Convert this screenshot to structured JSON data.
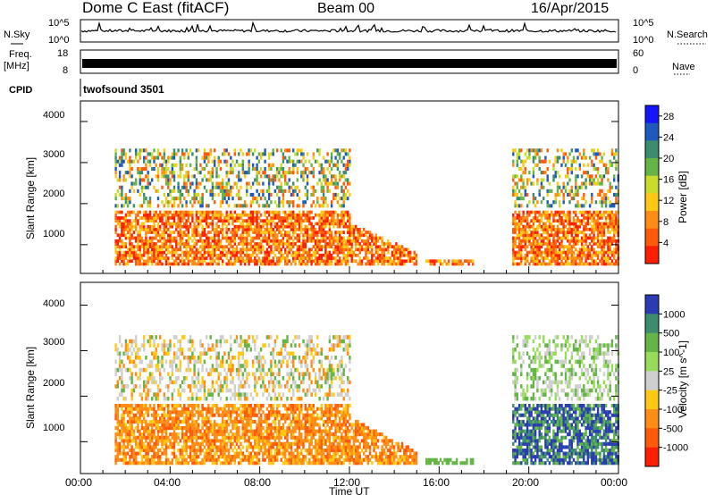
{
  "header": {
    "title": "Dome C East (fitACF)",
    "beam": "Beam 00",
    "date": "16/Apr/2015"
  },
  "status_panels": {
    "nsky_label": "N.Sky",
    "nsky_ticks": [
      "10^5",
      "10^0"
    ],
    "nsearch_label": "N.Search",
    "nsearch_ticks": [
      "10^5",
      "10^0"
    ],
    "freq_label": "Freq.",
    "freq_unit": "[MHz]",
    "freq_ticks": [
      "18",
      "8"
    ],
    "nave_label": "Nave",
    "nave_ticks": [
      "60",
      "0"
    ],
    "cpid_label": "CPID",
    "cpid_value": "twofsound 3501"
  },
  "chart_data": [
    {
      "type": "heatmap",
      "name": "power",
      "ylabel": "Slant Range [km]",
      "ylim": [
        300,
        4500
      ],
      "yticks": [
        "1000",
        "2000",
        "3000",
        "4000"
      ],
      "xlim_hours": [
        0,
        24
      ],
      "colorbar_label": "Power [dB]",
      "colorbar_ticks": [
        "4",
        "8",
        "12",
        "16",
        "20",
        "24",
        "28"
      ],
      "colorbar_colors": [
        "#1414ff",
        "#1e5abe",
        "#3c8c6e",
        "#64b446",
        "#c8dc28",
        "#ffc814",
        "#ff8c14",
        "#ff5a0a",
        "#ff1e00"
      ],
      "colorbar_range": [
        0,
        30
      ],
      "occupied_intervals_hours": [
        [
          1.5,
          15.0
        ],
        [
          15.3,
          17.5
        ],
        [
          19.2,
          24
        ]
      ]
    },
    {
      "type": "heatmap",
      "name": "velocity",
      "ylabel": "Slant Range [km]",
      "ylim": [
        300,
        4500
      ],
      "yticks": [
        "1000",
        "2000",
        "3000",
        "4000"
      ],
      "xlabel": "Time UT",
      "xticks": [
        "00:00",
        "04:00",
        "08:00",
        "12:00",
        "16:00",
        "20:00",
        "00:00"
      ],
      "xlim_hours": [
        0,
        24
      ],
      "colorbar_label": "Velocity [m s^-1]",
      "colorbar_ticks": [
        "1000",
        "500",
        "100",
        "25",
        "-25",
        "-100",
        "-500",
        "-1000"
      ],
      "colorbar_colors": [
        "#2a3cb4",
        "#3c8c6e",
        "#64b446",
        "#96dc5a",
        "#cfcfcf",
        "#ffc814",
        "#ff8c14",
        "#ff5a0a",
        "#ff1e00"
      ],
      "occupied_intervals_hours": [
        [
          1.5,
          15.0
        ],
        [
          15.3,
          17.5
        ],
        [
          19.2,
          24
        ]
      ]
    }
  ]
}
